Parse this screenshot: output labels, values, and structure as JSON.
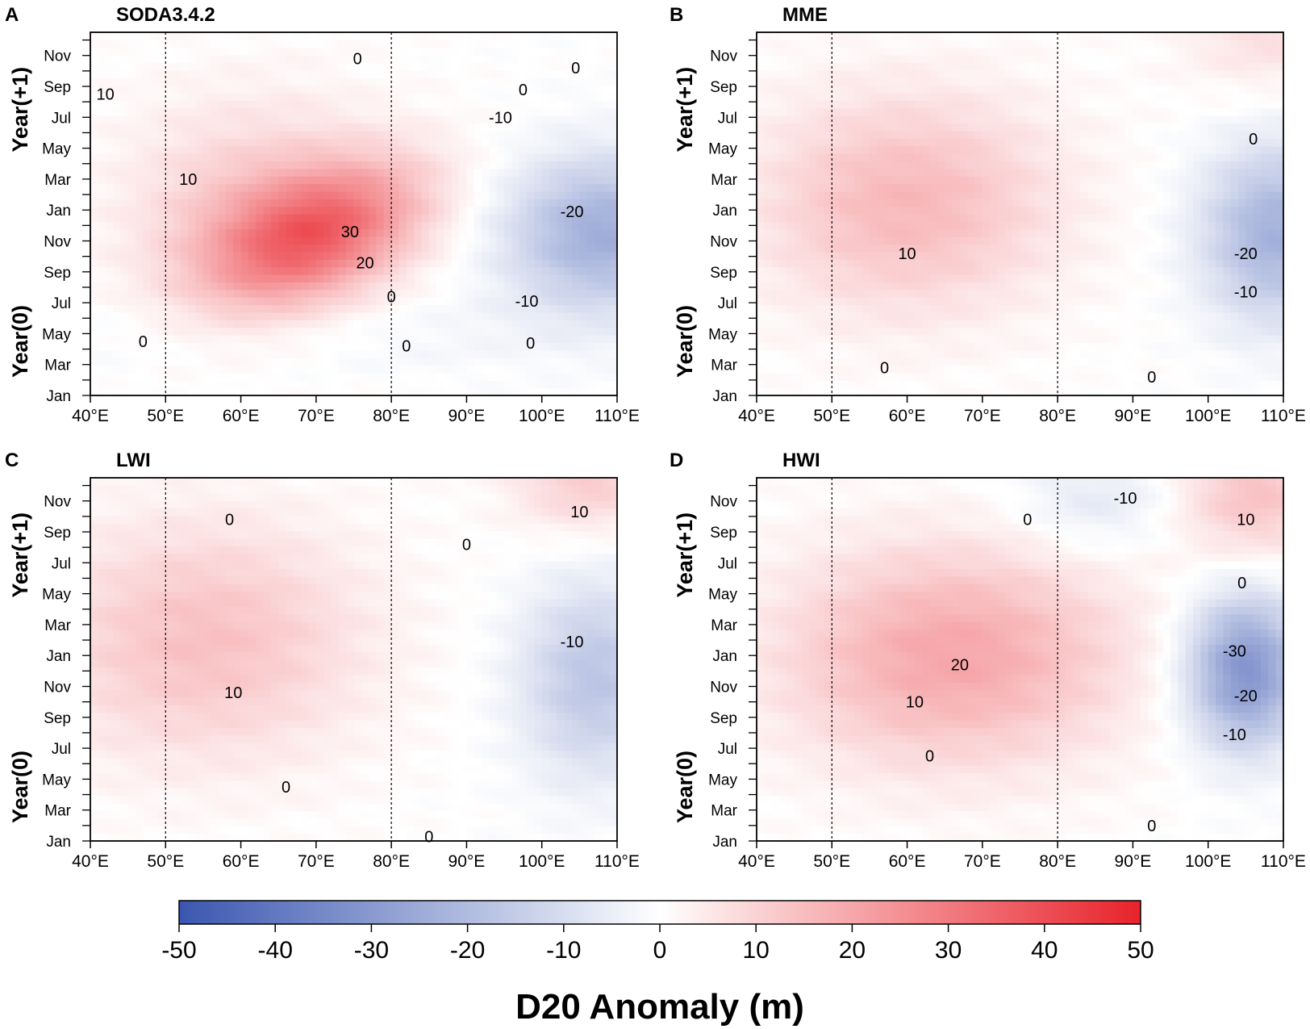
{
  "chart_data": [
    {
      "type": "heatmap",
      "panel": "A",
      "title": "SODA3.4.2",
      "x": [
        "40°E",
        "50°E",
        "60°E",
        "70°E",
        "80°E",
        "90°E",
        "100°E",
        "110°E"
      ],
      "x_values": [
        40,
        50,
        60,
        70,
        80,
        90,
        100,
        110
      ],
      "xlim": [
        40,
        110
      ],
      "y": [
        "Jan",
        "Mar",
        "May",
        "Jul",
        "Sep",
        "Nov",
        "Jan",
        "Mar",
        "May",
        "Jul",
        "Sep",
        "Nov"
      ],
      "ylim": [
        0,
        23.5
      ],
      "ylabels": [
        "Year(0)",
        "Year(+1)"
      ],
      "reference_lines": [
        50,
        80
      ],
      "blobs": [
        {
          "lon": 70,
          "m": 10.5,
          "slon": 9,
          "sm": 3.2,
          "amp": 30,
          "rot": -0.35
        },
        {
          "lon": 62,
          "m": 12,
          "slon": 12,
          "sm": 5,
          "amp": 12,
          "rot": 0
        },
        {
          "lon": 108,
          "m": 10.5,
          "slon": 9,
          "sm": 3.5,
          "amp": -24,
          "rot": 0
        },
        {
          "lon": 70,
          "m": 4,
          "slon": 25,
          "sm": 2,
          "amp": -3,
          "rot": 0
        }
      ],
      "contour_labels": [
        {
          "text": "10",
          "lon": 42,
          "m": 19.5
        },
        {
          "text": "10",
          "lon": 53,
          "m": 14
        },
        {
          "text": "30",
          "lon": 74.5,
          "m": 10.6
        },
        {
          "text": "20",
          "lon": 76.5,
          "m": 8.6
        },
        {
          "text": "0",
          "lon": 47,
          "m": 3.5
        },
        {
          "text": "0",
          "lon": 80,
          "m": 6.4
        },
        {
          "text": "0",
          "lon": 82,
          "m": 3.2
        },
        {
          "text": "0",
          "lon": 98.5,
          "m": 3.4
        },
        {
          "text": "0",
          "lon": 75.5,
          "m": 21.8
        },
        {
          "text": "0",
          "lon": 97.5,
          "m": 19.8
        },
        {
          "text": "0",
          "lon": 104.5,
          "m": 21.2
        },
        {
          "text": "-10",
          "lon": 94.5,
          "m": 18
        },
        {
          "text": "-20",
          "lon": 104,
          "m": 11.9
        },
        {
          "text": "-10",
          "lon": 98,
          "m": 6.1
        }
      ]
    },
    {
      "type": "heatmap",
      "panel": "B",
      "title": "MME",
      "x": [
        "40°E",
        "50°E",
        "60°E",
        "70°E",
        "80°E",
        "90°E",
        "100°E",
        "110°E"
      ],
      "x_values": [
        40,
        50,
        60,
        70,
        80,
        90,
        100,
        110
      ],
      "xlim": [
        40,
        110
      ],
      "y": [
        "Jan",
        "Mar",
        "May",
        "Jul",
        "Sep",
        "Nov",
        "Jan",
        "Mar",
        "May",
        "Jul",
        "Sep",
        "Nov"
      ],
      "ylim": [
        0,
        23.5
      ],
      "ylabels": [
        "Year(0)",
        "Year(+1)"
      ],
      "reference_lines": [
        50,
        80
      ],
      "blobs": [
        {
          "lon": 60,
          "m": 12.5,
          "slon": 14,
          "sm": 5,
          "amp": 16,
          "rot": 0
        },
        {
          "lon": 109,
          "m": 10.5,
          "slon": 7,
          "sm": 4,
          "amp": -23,
          "rot": 0
        },
        {
          "lon": 108,
          "m": 24,
          "slon": 8,
          "sm": 3,
          "amp": 8,
          "rot": 0
        }
      ],
      "contour_labels": [
        {
          "text": "10",
          "lon": 60,
          "m": 9.2
        },
        {
          "text": "0",
          "lon": 57,
          "m": 1.8
        },
        {
          "text": "0",
          "lon": 92.5,
          "m": 1.2
        },
        {
          "text": "0",
          "lon": 106,
          "m": 16.6
        },
        {
          "text": "-20",
          "lon": 105,
          "m": 9.2
        },
        {
          "text": "-10",
          "lon": 105,
          "m": 6.7
        }
      ]
    },
    {
      "type": "heatmap",
      "panel": "C",
      "title": "LWI",
      "x": [
        "40°E",
        "50°E",
        "60°E",
        "70°E",
        "80°E",
        "90°E",
        "100°E",
        "110°E"
      ],
      "x_values": [
        40,
        50,
        60,
        70,
        80,
        90,
        100,
        110
      ],
      "xlim": [
        40,
        110
      ],
      "y": [
        "Jan",
        "Mar",
        "May",
        "Jul",
        "Sep",
        "Nov",
        "Jan",
        "Mar",
        "May",
        "Jul",
        "Sep",
        "Nov"
      ],
      "ylim": [
        0,
        23.5
      ],
      "ylabels": [
        "Year(0)",
        "Year(+1)"
      ],
      "reference_lines": [
        50,
        80
      ],
      "blobs": [
        {
          "lon": 55,
          "m": 13,
          "slon": 15,
          "sm": 5.5,
          "amp": 14,
          "rot": 0
        },
        {
          "lon": 107,
          "m": 10.5,
          "slon": 7,
          "sm": 4.5,
          "amp": -17,
          "rot": 0
        },
        {
          "lon": 106,
          "m": 23.5,
          "slon": 7,
          "sm": 2.5,
          "amp": 12,
          "rot": 0
        }
      ],
      "contour_labels": [
        {
          "text": "10",
          "lon": 59,
          "m": 9.6
        },
        {
          "text": "0",
          "lon": 58.5,
          "m": 20.8
        },
        {
          "text": "0",
          "lon": 90,
          "m": 19.2
        },
        {
          "text": "0",
          "lon": 66,
          "m": 3.5
        },
        {
          "text": "0",
          "lon": 85,
          "m": 0.3
        },
        {
          "text": "10",
          "lon": 105,
          "m": 21.3
        },
        {
          "text": "-10",
          "lon": 104,
          "m": 12.9
        }
      ]
    },
    {
      "type": "heatmap",
      "panel": "D",
      "title": "HWI",
      "x": [
        "40°E",
        "50°E",
        "60°E",
        "70°E",
        "80°E",
        "90°E",
        "100°E",
        "110°E"
      ],
      "x_values": [
        40,
        50,
        60,
        70,
        80,
        90,
        100,
        110
      ],
      "xlim": [
        40,
        110
      ],
      "y": [
        "Jan",
        "Mar",
        "May",
        "Jul",
        "Sep",
        "Nov",
        "Jan",
        "Mar",
        "May",
        "Jul",
        "Sep",
        "Nov"
      ],
      "ylim": [
        0,
        23.5
      ],
      "ylabels": [
        "Year(0)",
        "Year(+1)"
      ],
      "reference_lines": [
        50,
        80
      ],
      "blobs": [
        {
          "lon": 66,
          "m": 12,
          "slon": 16,
          "sm": 5,
          "amp": 20,
          "rot": 0
        },
        {
          "lon": 105,
          "m": 11,
          "slon": 5.5,
          "sm": 3.5,
          "amp": -32,
          "rot": 0
        },
        {
          "lon": 106,
          "m": 22.5,
          "slon": 7,
          "sm": 3,
          "amp": 14,
          "rot": 0
        },
        {
          "lon": 85,
          "m": 22,
          "slon": 8,
          "sm": 2.5,
          "amp": -7,
          "rot": 0
        }
      ],
      "contour_labels": [
        {
          "text": "20",
          "lon": 67,
          "m": 11.4
        },
        {
          "text": "10",
          "lon": 61,
          "m": 9
        },
        {
          "text": "0",
          "lon": 76,
          "m": 20.8
        },
        {
          "text": "-10",
          "lon": 89,
          "m": 22.2
        },
        {
          "text": "10",
          "lon": 105,
          "m": 20.8
        },
        {
          "text": "0",
          "lon": 104.5,
          "m": 16.7
        },
        {
          "text": "0",
          "lon": 63,
          "m": 5.5
        },
        {
          "text": "0",
          "lon": 92.5,
          "m": 1
        },
        {
          "text": "-30",
          "lon": 103.5,
          "m": 12.3
        },
        {
          "text": "-20",
          "lon": 105,
          "m": 9.4
        },
        {
          "text": "-10",
          "lon": 103.5,
          "m": 6.9
        }
      ]
    }
  ],
  "colorbar": {
    "ticks": [
      "-50",
      "-40",
      "-30",
      "-20",
      "-10",
      "0",
      "10",
      "20",
      "30",
      "40",
      "50"
    ],
    "tick_values": [
      -50,
      -40,
      -30,
      -20,
      -10,
      0,
      10,
      20,
      30,
      40,
      50
    ],
    "range": [
      -50,
      50
    ],
    "label": "D20 Anomaly (m)",
    "colors": {
      "low": "#3a56b0",
      "mid": "#ffffff",
      "high": "#e8222a"
    }
  },
  "colors": {
    "axis": "#000000",
    "background": "#ffffff"
  }
}
